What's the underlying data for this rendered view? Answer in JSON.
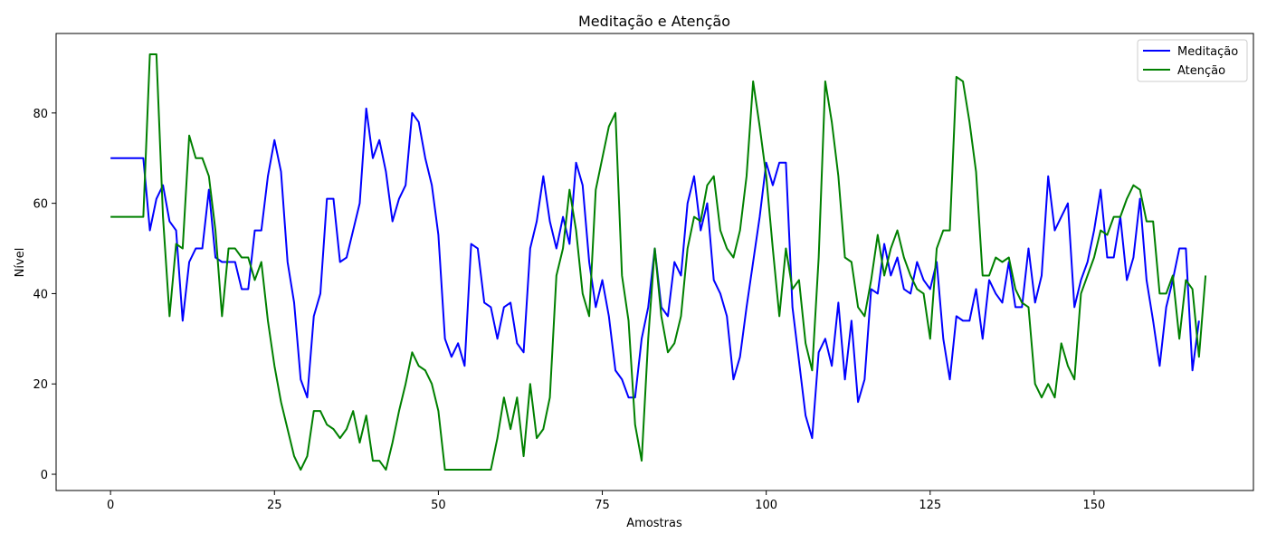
{
  "chart_data": {
    "type": "line",
    "title": "Meditação e Atenção",
    "xlabel": "Amostras",
    "ylabel": "Nível",
    "xlim": [
      -8.3,
      174.3
    ],
    "ylim": [
      -3.6,
      97.6
    ],
    "xticks": [
      0,
      25,
      50,
      75,
      100,
      125,
      150
    ],
    "yticks": [
      0,
      20,
      40,
      60,
      80
    ],
    "grid": false,
    "legend": "top-right",
    "series": [
      {
        "name": "Meditação",
        "color": "#0000ff",
        "values": [
          70,
          70,
          70,
          70,
          70,
          70,
          54,
          61,
          64,
          56,
          54,
          34,
          47,
          50,
          50,
          63,
          48,
          47,
          47,
          47,
          41,
          41,
          54,
          54,
          66,
          74,
          67,
          47,
          38,
          21,
          17,
          35,
          40,
          61,
          61,
          47,
          48,
          54,
          60,
          81,
          70,
          74,
          67,
          56,
          61,
          64,
          80,
          78,
          70,
          64,
          53,
          30,
          26,
          29,
          24,
          51,
          50,
          38,
          37,
          30,
          37,
          38,
          29,
          27,
          50,
          56,
          66,
          56,
          50,
          57,
          51,
          69,
          64,
          47,
          37,
          43,
          35,
          23,
          21,
          17,
          17,
          30,
          37,
          50,
          37,
          35,
          47,
          44,
          60,
          66,
          54,
          60,
          43,
          40,
          35,
          21,
          26,
          37,
          47,
          57,
          69,
          64,
          69,
          69,
          37,
          25,
          13,
          8,
          27,
          30,
          24,
          38,
          21,
          34,
          16,
          21,
          41,
          40,
          51,
          44,
          48,
          41,
          40,
          47,
          43,
          41,
          47,
          30,
          21,
          35,
          34,
          34,
          41,
          30,
          43,
          40,
          38,
          47,
          37,
          37,
          50,
          38,
          44,
          66,
          54,
          57,
          60,
          37,
          43,
          47,
          54,
          63,
          48,
          48,
          57,
          43,
          48,
          61,
          43,
          34,
          24,
          37,
          43,
          50,
          50,
          23,
          34
        ]
      },
      {
        "name": "Atenção",
        "color": "#008000",
        "values": [
          57,
          57,
          57,
          57,
          57,
          57,
          93,
          93,
          57,
          35,
          51,
          50,
          75,
          70,
          70,
          66,
          54,
          35,
          50,
          50,
          48,
          48,
          43,
          47,
          34,
          24,
          16,
          10,
          4,
          1,
          4,
          14,
          14,
          11,
          10,
          8,
          10,
          14,
          7,
          13,
          3,
          3,
          1,
          7,
          14,
          20,
          27,
          24,
          23,
          20,
          14,
          1,
          1,
          1,
          1,
          1,
          1,
          1,
          1,
          8,
          17,
          10,
          17,
          4,
          20,
          8,
          10,
          17,
          44,
          50,
          63,
          54,
          40,
          35,
          63,
          70,
          77,
          80,
          44,
          34,
          11,
          3,
          30,
          50,
          35,
          27,
          29,
          35,
          50,
          57,
          56,
          64,
          66,
          54,
          50,
          48,
          54,
          66,
          87,
          77,
          66,
          50,
          35,
          50,
          41,
          43,
          29,
          23,
          48,
          87,
          78,
          66,
          48,
          47,
          37,
          35,
          43,
          53,
          44,
          50,
          54,
          48,
          44,
          41,
          40,
          30,
          50,
          54,
          54,
          88,
          87,
          78,
          67,
          44,
          44,
          48,
          47,
          48,
          41,
          38,
          37,
          20,
          17,
          20,
          17,
          29,
          24,
          21,
          40,
          44,
          48,
          54,
          53,
          57,
          57,
          61,
          64,
          63,
          56,
          56,
          40,
          40,
          44,
          30,
          43,
          41,
          26,
          44
        ]
      }
    ]
  }
}
